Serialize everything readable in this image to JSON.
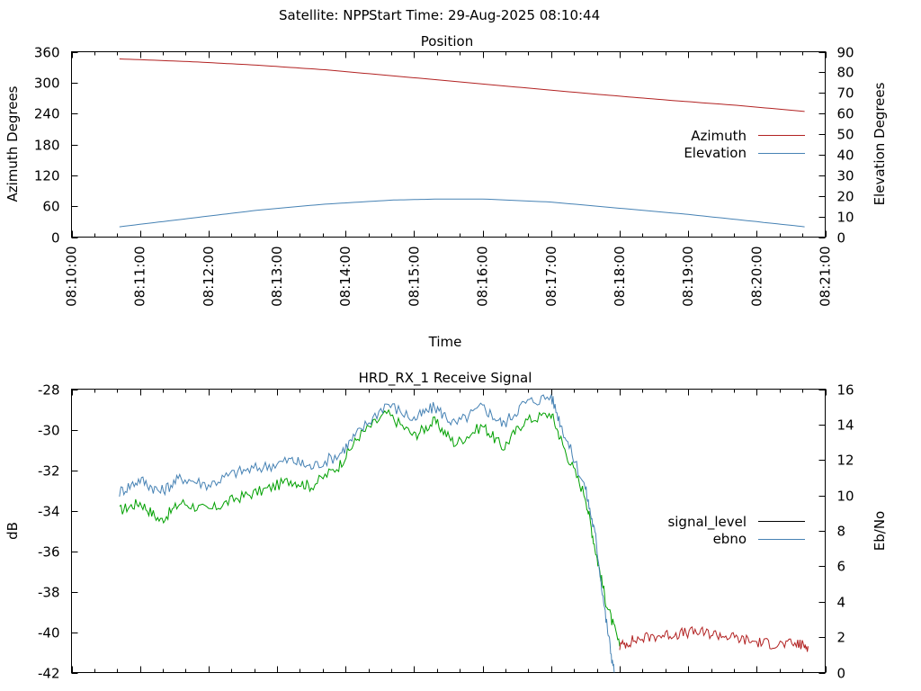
{
  "header": {
    "satellite": "Satellite: NPP",
    "start_time": "Start Time: 29-Aug-2025 08:10:44"
  },
  "chart_data": [
    {
      "type": "line",
      "title": "Position",
      "xlabel": "Time",
      "ylabel": "Azimuth Degrees",
      "y2label": "Elevation Degrees",
      "x_ticks": [
        "08:10:00",
        "08:11:00",
        "08:12:00",
        "08:13:00",
        "08:14:00",
        "08:15:00",
        "08:16:00",
        "08:17:00",
        "08:18:00",
        "08:19:00",
        "08:20:00",
        "08:21:00"
      ],
      "x_range_minutes": [
        0,
        11
      ],
      "ylim": [
        0,
        360
      ],
      "y_ticks": [
        "0",
        "60",
        "120",
        "180",
        "240",
        "300",
        "360"
      ],
      "y2lim": [
        0,
        90
      ],
      "y2_ticks": [
        "0",
        "10",
        "20",
        "30",
        "40",
        "50",
        "60",
        "70",
        "80",
        "90"
      ],
      "legend_position": "right",
      "series": [
        {
          "name": "Azimuth",
          "axis": "y",
          "color": "#b22222",
          "x_minutes": [
            0.7,
            1.7,
            2.7,
            3.7,
            4.7,
            5.7,
            6.7,
            7.7,
            8.7,
            9.7,
            10.7
          ],
          "values": [
            346,
            341,
            334,
            325,
            313,
            301,
            289,
            277,
            266,
            256,
            244
          ]
        },
        {
          "name": "Elevation",
          "axis": "y2",
          "color": "#4682b4",
          "x_minutes": [
            0.7,
            1.7,
            2.7,
            3.7,
            4.7,
            5.4,
            6.0,
            7.0,
            8.0,
            9.0,
            10.0,
            10.7
          ],
          "values": [
            5,
            9,
            13,
            16,
            18,
            18.5,
            18.5,
            17,
            14,
            11,
            7.5,
            5
          ]
        }
      ]
    },
    {
      "type": "line",
      "title": "HRD_RX_1 Receive Signal",
      "xlabel": "",
      "ylabel": "dB",
      "y2label": "Eb/No",
      "x_range_minutes": [
        0,
        11
      ],
      "ylim": [
        -42,
        -28
      ],
      "y_ticks": [
        "-42",
        "-40",
        "-38",
        "-36",
        "-34",
        "-32",
        "-30",
        "-28"
      ],
      "y2lim": [
        0,
        16
      ],
      "y2_ticks": [
        "0",
        "2",
        "4",
        "6",
        "8",
        "10",
        "12",
        "14",
        "16"
      ],
      "legend_position": "right",
      "series": [
        {
          "name": "signal_level",
          "axis": "y",
          "color": "#000000",
          "segments": [
            {
              "color": "#00a000",
              "x_minutes": [
                0.7,
                1.0,
                1.3,
                1.6,
                2.0,
                2.4,
                2.8,
                3.2,
                3.5,
                3.9,
                4.2,
                4.6,
                5.0,
                5.3,
                5.6,
                6.0,
                6.3,
                6.6,
                7.0,
                7.2,
                7.5,
                7.65,
                7.8,
                8.0
              ],
              "values": [
                -34.0,
                -33.6,
                -34.5,
                -33.6,
                -34.0,
                -33.4,
                -33.0,
                -32.5,
                -32.8,
                -31.8,
                -30.3,
                -29.2,
                -30.3,
                -29.6,
                -30.7,
                -29.8,
                -30.9,
                -29.6,
                -29.2,
                -31.0,
                -33.3,
                -36.0,
                -38.5,
                -40.7
              ]
            },
            {
              "color": "#b22222",
              "x_minutes": [
                8.0,
                8.2,
                8.5,
                8.8,
                9.1,
                9.4,
                9.7,
                10.0,
                10.3,
                10.6,
                10.75
              ],
              "values": [
                -40.7,
                -40.4,
                -40.2,
                -40.1,
                -40.0,
                -40.1,
                -40.3,
                -40.5,
                -40.6,
                -40.6,
                -40.7
              ]
            }
          ]
        },
        {
          "name": "ebno",
          "axis": "y2",
          "color": "#4682b4",
          "x_minutes": [
            0.7,
            1.0,
            1.3,
            1.6,
            2.0,
            2.4,
            2.8,
            3.2,
            3.5,
            3.9,
            4.2,
            4.6,
            5.0,
            5.3,
            5.6,
            6.0,
            6.3,
            6.6,
            7.0,
            7.2,
            7.5,
            7.65,
            7.8,
            7.92
          ],
          "values": [
            10.2,
            10.9,
            10.2,
            11.0,
            10.6,
            11.3,
            11.6,
            12.0,
            11.6,
            12.3,
            13.6,
            15.2,
            14.3,
            15.0,
            14.0,
            15.0,
            14.0,
            15.2,
            15.6,
            13.4,
            10.4,
            7.6,
            3.0,
            0.0
          ]
        }
      ]
    }
  ]
}
